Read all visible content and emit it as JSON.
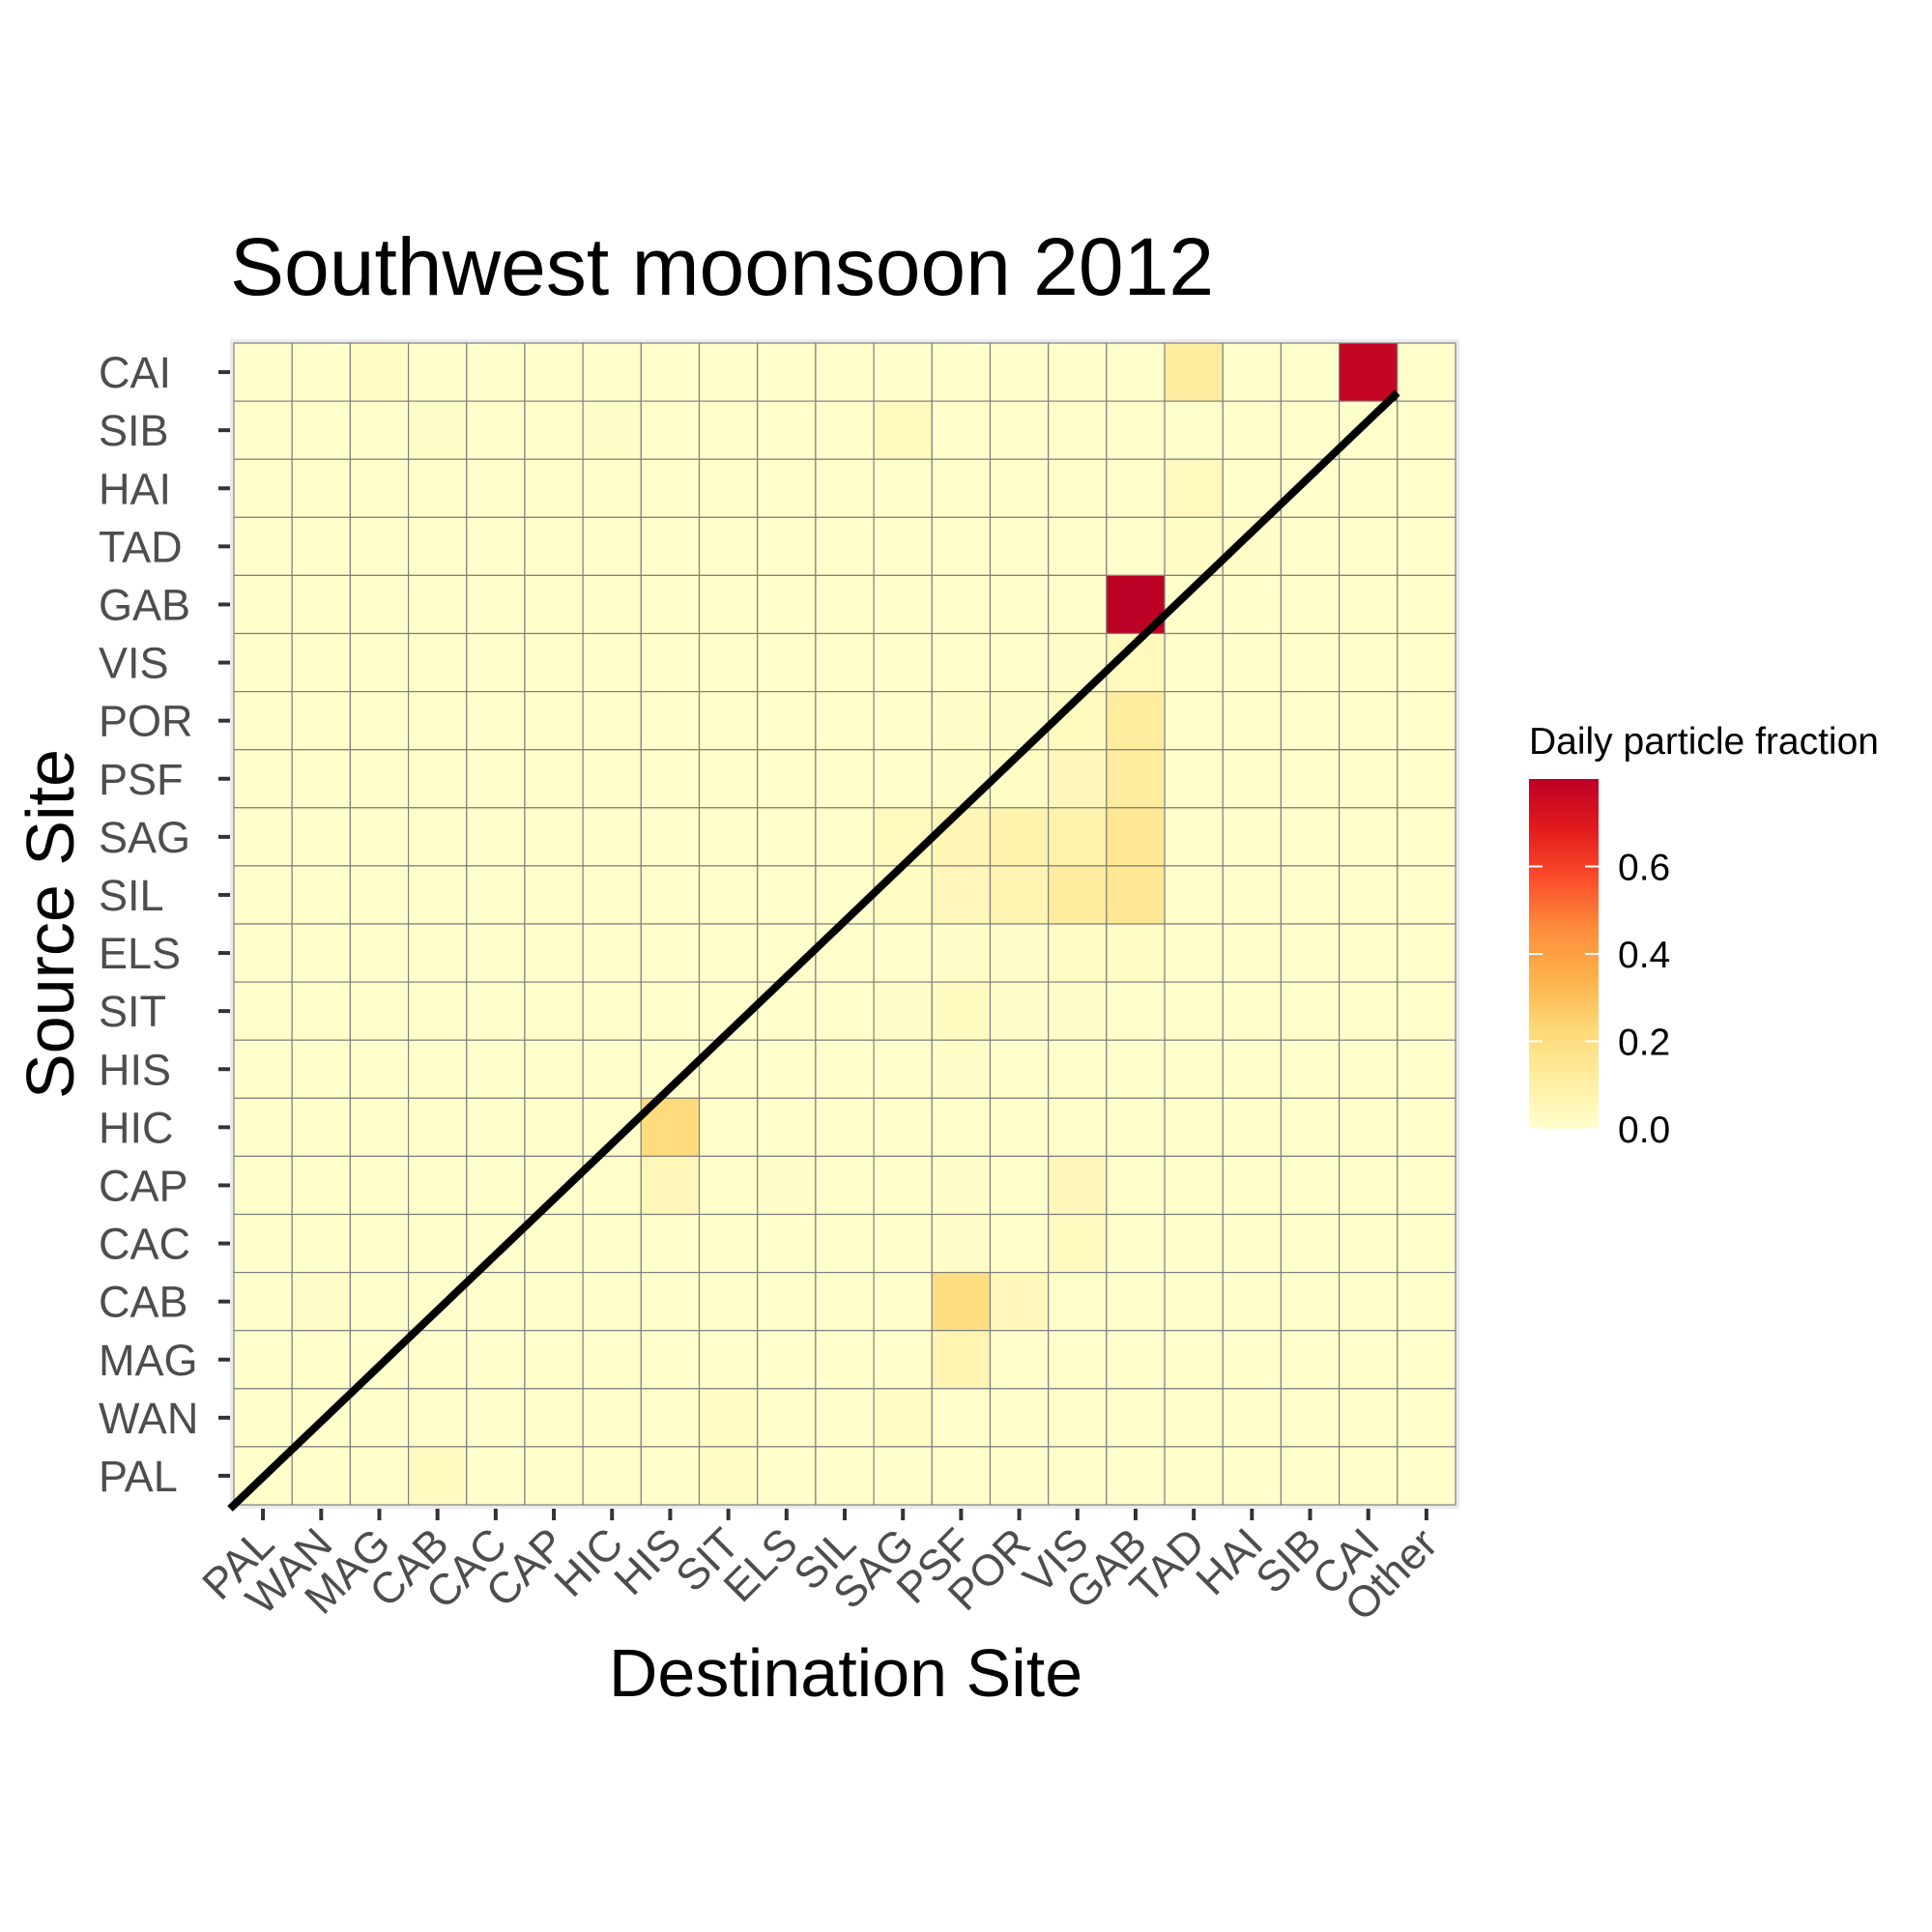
{
  "chart_data": {
    "type": "heatmap",
    "title": "Southwest moonsoon 2012",
    "xlabel": "Destination Site",
    "ylabel": "Source Site",
    "x_categories": [
      "PAL",
      "WAN",
      "MAG",
      "CAB",
      "CAC",
      "CAP",
      "HIC",
      "HIS",
      "SIT",
      "ELS",
      "SIL",
      "SAG",
      "PSF",
      "POR",
      "VIS",
      "GAB",
      "TAD",
      "HAI",
      "SIB",
      "CAI",
      "Other"
    ],
    "y_categories": [
      "CAI",
      "SIB",
      "HAI",
      "TAD",
      "GAB",
      "VIS",
      "POR",
      "PSF",
      "SAG",
      "SIL",
      "ELS",
      "SIT",
      "HIS",
      "HIC",
      "CAP",
      "CAC",
      "CAB",
      "MAG",
      "WAN",
      "PAL"
    ],
    "values": [
      [
        0,
        0,
        0.02,
        0,
        0,
        0,
        0,
        0,
        0,
        0,
        0,
        0,
        0,
        0,
        0,
        0,
        0.12,
        0,
        0,
        0.78,
        0
      ],
      [
        0,
        0,
        0,
        0.01,
        0,
        0,
        0.01,
        0,
        0,
        0,
        0,
        0.04,
        0,
        0,
        0,
        0,
        0,
        0,
        0,
        0,
        0
      ],
      [
        0,
        0,
        0,
        0,
        0,
        0,
        0,
        0,
        0,
        0,
        0,
        0,
        0,
        0,
        0,
        0,
        0.04,
        0,
        0,
        0,
        0
      ],
      [
        0,
        0,
        0,
        0,
        0,
        0,
        0,
        0,
        0,
        0,
        0,
        0,
        0,
        0,
        0,
        0,
        0.02,
        0.01,
        0,
        0,
        0
      ],
      [
        0,
        0,
        0,
        0,
        0,
        0,
        0,
        0,
        0,
        0,
        0,
        0,
        0,
        0,
        0,
        0.8,
        0,
        0,
        0,
        0,
        0
      ],
      [
        0,
        0,
        0,
        0,
        0,
        0,
        0,
        0,
        0,
        0,
        0,
        0,
        0,
        0,
        0.01,
        0.04,
        0,
        0,
        0,
        0,
        0
      ],
      [
        0,
        0,
        0,
        0,
        0,
        0,
        0,
        0,
        0,
        0,
        0,
        0,
        0.01,
        0.01,
        0.03,
        0.12,
        0,
        0,
        0,
        0,
        0
      ],
      [
        0,
        0,
        0,
        0,
        0,
        0,
        0,
        0,
        0,
        0,
        0,
        0,
        0.01,
        0.02,
        0.05,
        0.12,
        0,
        0,
        0,
        0,
        0
      ],
      [
        0,
        0,
        0,
        0,
        0,
        0,
        0,
        0,
        0,
        0,
        0,
        0.04,
        0.06,
        0.08,
        0.08,
        0.15,
        0,
        0,
        0,
        0,
        0
      ],
      [
        0,
        0,
        0,
        0,
        0,
        0,
        0,
        0,
        0,
        0,
        0,
        0.02,
        0.05,
        0.07,
        0.12,
        0.15,
        0,
        0,
        0,
        0,
        0
      ],
      [
        0,
        0,
        0,
        0,
        0,
        0,
        0,
        0,
        0,
        0,
        0,
        0,
        0.01,
        0.01,
        0.02,
        0.02,
        0,
        0,
        0,
        0,
        0
      ],
      [
        0,
        0,
        0,
        0,
        0,
        0,
        0,
        0,
        0,
        0,
        0,
        0.01,
        0.03,
        0.01,
        0.01,
        0,
        0,
        0,
        0,
        0,
        0
      ],
      [
        0,
        0,
        0,
        0,
        0,
        0,
        0,
        0,
        0,
        0,
        0,
        0,
        0.01,
        0,
        0,
        0,
        0,
        0,
        0,
        0,
        0
      ],
      [
        0,
        0,
        0,
        0,
        0,
        0,
        0,
        0.21,
        0,
        0,
        0,
        0,
        0,
        0,
        0,
        0,
        0,
        0,
        0,
        0,
        0
      ],
      [
        0,
        0,
        0,
        0,
        0,
        0,
        0,
        0.05,
        0,
        0.01,
        0,
        0,
        0.01,
        0,
        0.05,
        0,
        0,
        0,
        0,
        0,
        0
      ],
      [
        0,
        0,
        0,
        0,
        0,
        0,
        0,
        0,
        0,
        0,
        0,
        0,
        0.01,
        0,
        0.03,
        0,
        0,
        0,
        0,
        0,
        0
      ],
      [
        0,
        0.01,
        0,
        0,
        0,
        0,
        0,
        0,
        0,
        0,
        0,
        0,
        0.2,
        0.05,
        0,
        0,
        0,
        0,
        0,
        0,
        0
      ],
      [
        0,
        0,
        0,
        0,
        0,
        0,
        0,
        0,
        0,
        0,
        0,
        0,
        0.07,
        0,
        0,
        0,
        0,
        0,
        0,
        0,
        0
      ],
      [
        0,
        0,
        0,
        0,
        0,
        0,
        0,
        0,
        0.02,
        0,
        0,
        0.02,
        0,
        0,
        0,
        0,
        0,
        0,
        0,
        0,
        0
      ],
      [
        0,
        0,
        0,
        0.03,
        0,
        0,
        0,
        0,
        0.02,
        0,
        0,
        0,
        0,
        0,
        0,
        0,
        0,
        0,
        0,
        0,
        0
      ]
    ],
    "value_range": [
      0,
      0.8
    ],
    "diagonal_line": true,
    "grid": true,
    "legend": {
      "title": "Daily particle fraction",
      "ticks": [
        "0.0",
        "0.2",
        "0.4",
        "0.6"
      ],
      "tick_values": [
        0,
        0.2,
        0.4,
        0.6
      ],
      "placement": "right",
      "colors": [
        "#ffffcc",
        "#ffeda0",
        "#fed976",
        "#feb24c",
        "#fd8d3c",
        "#fc4e2a",
        "#e31a1c",
        "#bd0026"
      ]
    }
  }
}
